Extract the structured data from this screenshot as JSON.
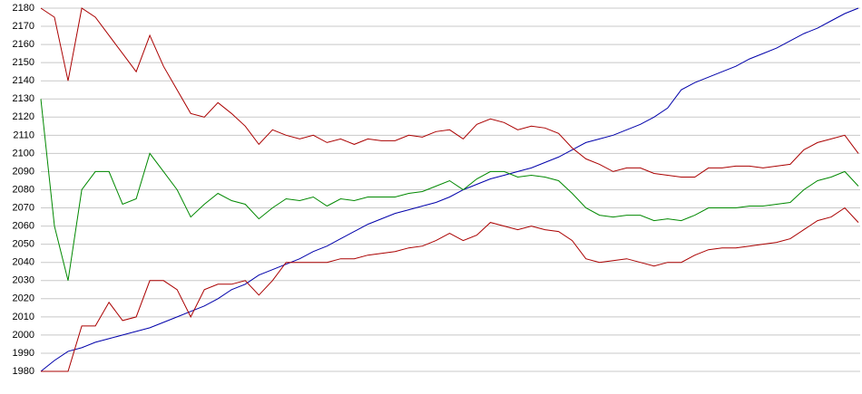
{
  "chart_data": {
    "type": "line",
    "ylim": [
      1980,
      2180
    ],
    "yticks": [
      1980,
      1990,
      2000,
      2010,
      2020,
      2030,
      2040,
      2050,
      2060,
      2070,
      2080,
      2090,
      2100,
      2110,
      2120,
      2130,
      2140,
      2150,
      2160,
      2170,
      2180
    ],
    "grid": true,
    "series": [
      {
        "color": "#0000aa",
        "values": [
          1980,
          1986,
          1991,
          1993,
          1996,
          1998,
          2000,
          2002,
          2004,
          2007,
          2010,
          2013,
          2016,
          2020,
          2025,
          2028,
          2033,
          2036,
          2039,
          2042,
          2046,
          2049,
          2053,
          2057,
          2061,
          2064,
          2067,
          2069,
          2071,
          2073,
          2076,
          2080,
          2083,
          2086,
          2088,
          2090,
          2092,
          2095,
          2098,
          2102,
          2106,
          2108,
          2110,
          2113,
          2116,
          2120,
          2125,
          2135,
          2139,
          2142,
          2145,
          2148,
          2152,
          2155,
          2158,
          2162,
          2166,
          2169,
          2173,
          2177,
          2180
        ]
      },
      {
        "color": "#aa0000",
        "values": [
          2180,
          2175,
          2140,
          2180,
          2175,
          2165,
          2155,
          2145,
          2165,
          2148,
          2135,
          2122,
          2120,
          2128,
          2122,
          2115,
          2105,
          2113,
          2110,
          2108,
          2110,
          2106,
          2108,
          2105,
          2108,
          2107,
          2107,
          2110,
          2109,
          2112,
          2113,
          2108,
          2116,
          2119,
          2117,
          2113,
          2115,
          2114,
          2111,
          2103,
          2097,
          2094,
          2090,
          2092,
          2092,
          2089,
          2088,
          2087,
          2087,
          2092,
          2092,
          2093,
          2093,
          2092,
          2093,
          2094,
          2102,
          2106,
          2108,
          2110,
          2100
        ]
      },
      {
        "color": "#008800",
        "values": [
          2130,
          2060,
          2030,
          2080,
          2090,
          2090,
          2072,
          2075,
          2100,
          2090,
          2080,
          2065,
          2072,
          2078,
          2074,
          2072,
          2064,
          2070,
          2075,
          2074,
          2076,
          2071,
          2075,
          2074,
          2076,
          2076,
          2076,
          2078,
          2079,
          2082,
          2085,
          2080,
          2086,
          2090,
          2090,
          2087,
          2088,
          2087,
          2085,
          2078,
          2070,
          2066,
          2065,
          2066,
          2066,
          2063,
          2064,
          2063,
          2066,
          2070,
          2070,
          2070,
          2071,
          2071,
          2072,
          2073,
          2080,
          2085,
          2087,
          2090,
          2082
        ]
      },
      {
        "color": "#aa0000",
        "values": [
          1980,
          1980,
          1980,
          2005,
          2005,
          2018,
          2008,
          2010,
          2030,
          2030,
          2025,
          2010,
          2025,
          2028,
          2028,
          2030,
          2022,
          2030,
          2040,
          2040,
          2040,
          2040,
          2042,
          2042,
          2044,
          2045,
          2046,
          2048,
          2049,
          2052,
          2056,
          2052,
          2055,
          2062,
          2060,
          2058,
          2060,
          2058,
          2057,
          2052,
          2042,
          2040,
          2041,
          2042,
          2040,
          2038,
          2040,
          2040,
          2044,
          2047,
          2048,
          2048,
          2049,
          2050,
          2051,
          2053,
          2058,
          2063,
          2065,
          2070,
          2062
        ]
      }
    ]
  }
}
